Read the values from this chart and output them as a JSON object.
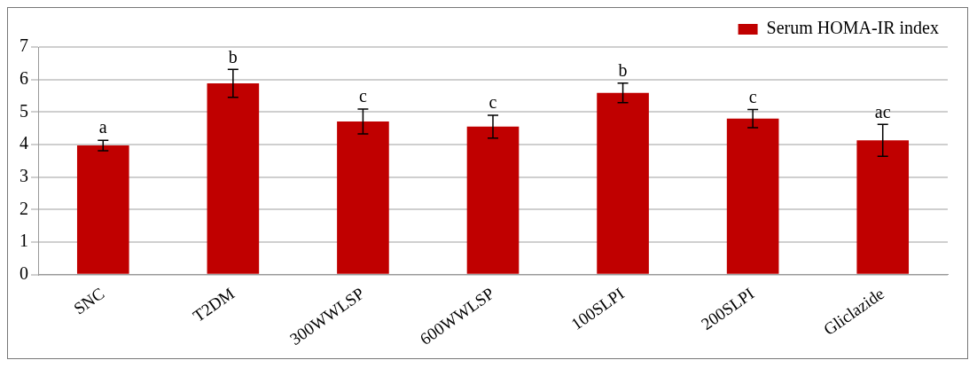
{
  "chart_data": {
    "type": "bar",
    "categories": [
      "SNC",
      "T2DM",
      "300WWLSP",
      "600WWLSP",
      "100SLPI",
      "200SLPI",
      "Gliclazide"
    ],
    "series": [
      {
        "name": "Serum HOMA-IR index",
        "color": "#c00000",
        "values": [
          3.97,
          5.88,
          4.71,
          4.55,
          5.59,
          4.8,
          4.13
        ],
        "errors": [
          0.16,
          0.43,
          0.38,
          0.35,
          0.3,
          0.28,
          0.49
        ]
      }
    ],
    "ylim": [
      0,
      7
    ],
    "yticks": [
      0,
      1,
      2,
      3,
      4,
      5,
      6,
      7
    ],
    "grid": "y",
    "legend": "top right",
    "annotations": [
      {
        "text": "a",
        "x": "SNC",
        "y": 4.13
      },
      {
        "text": "b",
        "x": "T2DM",
        "y": 6.31
      },
      {
        "text": "c",
        "x": "300WWLSP",
        "y": 5.09
      },
      {
        "text": "c",
        "x": "600WWLSP",
        "y": 4.9
      },
      {
        "text": "b",
        "x": "100SLPI",
        "y": 5.89
      },
      {
        "text": "c",
        "x": "200SLPI",
        "y": 5.08
      },
      {
        "text": "ac",
        "x": "Gliclazide",
        "y": 4.62
      }
    ]
  }
}
